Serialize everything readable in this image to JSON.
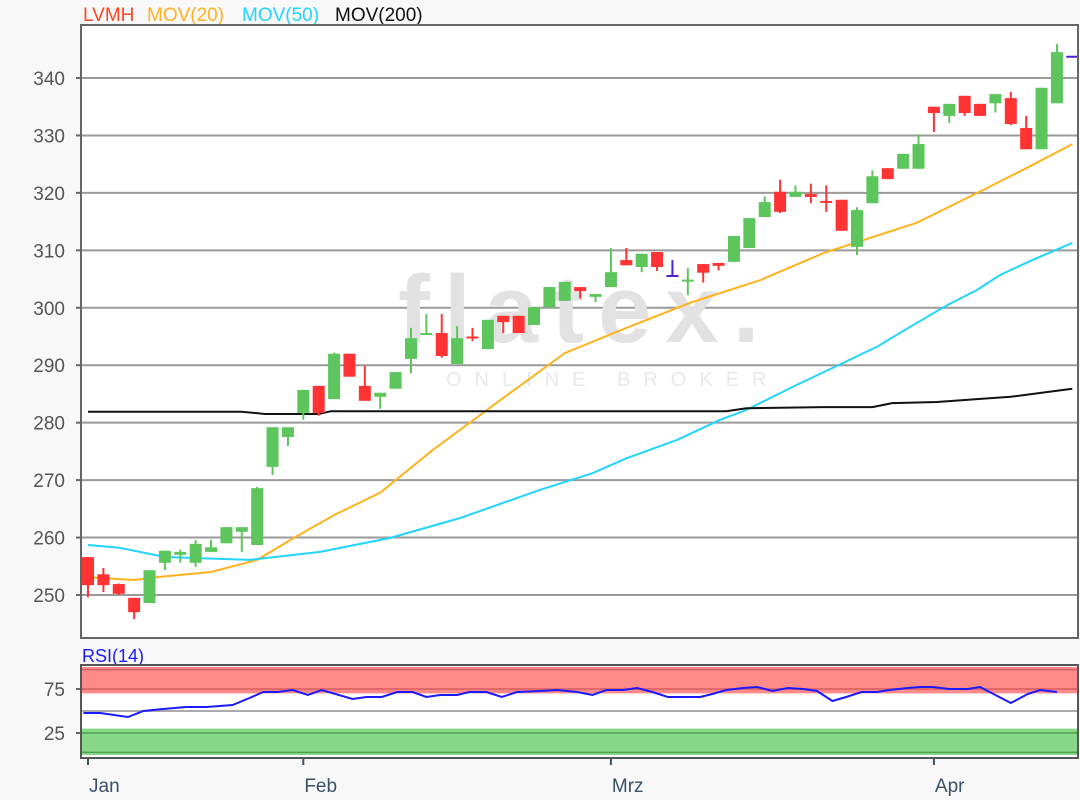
{
  "legend": [
    {
      "label": "LVMH",
      "color": "#ff4422"
    },
    {
      "label": "MOV(20)",
      "color": "#ffb21e"
    },
    {
      "label": "MOV(50)",
      "color": "#22d4ff"
    },
    {
      "label": "MOV(200)",
      "color": "#111111"
    }
  ],
  "watermark": {
    "brand": "flatex.",
    "tagline": "ONLINE BROKER"
  },
  "chart_data": [
    {
      "type": "candlestick",
      "title": "LVMH",
      "ylim": [
        242.5,
        349.2
      ],
      "yticks": [
        250,
        260,
        270,
        280,
        290,
        300,
        310,
        320,
        330,
        340
      ],
      "xticks": [
        {
          "index": 0,
          "label": "Jan"
        },
        {
          "index": 14,
          "label": "Feb"
        },
        {
          "index": 34,
          "label": "Mrz"
        },
        {
          "index": 55,
          "label": "Apr"
        }
      ],
      "grid": true,
      "colors": {
        "up": "#5cc65c",
        "down": "#ff3333",
        "unchanged": "#4a20d0"
      },
      "ohlc": [
        [
          256.6,
          256.6,
          249.6,
          251.7
        ],
        [
          253.6,
          254.7,
          250.5,
          251.7
        ],
        [
          251.9,
          252.0,
          250.0,
          250.2
        ],
        [
          249.5,
          249.5,
          245.8,
          247.0
        ],
        [
          248.6,
          254.3,
          248.6,
          254.3
        ],
        [
          255.6,
          257.7,
          254.3,
          257.7
        ],
        [
          257.0,
          257.9,
          255.6,
          257.5
        ],
        [
          255.6,
          259.6,
          254.9,
          258.9
        ],
        [
          257.5,
          259.6,
          257.5,
          258.3
        ],
        [
          259.0,
          261.8,
          259.0,
          261.8
        ],
        [
          261.0,
          261.8,
          257.5,
          261.8
        ],
        [
          258.7,
          268.8,
          258.7,
          268.6
        ],
        [
          272.3,
          279.2,
          270.9,
          279.2
        ],
        [
          277.5,
          279.2,
          275.9,
          279.2
        ],
        [
          281.7,
          285.7,
          280.5,
          285.7
        ],
        [
          286.4,
          286.4,
          281.2,
          281.7
        ],
        [
          284.1,
          292.2,
          284.1,
          292.0
        ],
        [
          292.0,
          292.0,
          288.0,
          288.0
        ],
        [
          286.4,
          289.9,
          283.8,
          283.8
        ],
        [
          284.5,
          285.2,
          282.4,
          285.2
        ],
        [
          285.9,
          288.8,
          285.9,
          288.8
        ],
        [
          291.1,
          296.5,
          288.6,
          294.7
        ],
        [
          295.3,
          298.9,
          295.3,
          295.6
        ],
        [
          295.6,
          298.9,
          291.3,
          291.6
        ],
        [
          290.2,
          296.8,
          290.2,
          294.7
        ],
        [
          295.0,
          296.5,
          294.2,
          294.8
        ],
        [
          292.8,
          297.9,
          292.8,
          297.9
        ],
        [
          298.6,
          298.6,
          295.6,
          297.5
        ],
        [
          298.6,
          298.6,
          295.6,
          295.6
        ],
        [
          297.0,
          300.1,
          297.0,
          300.1
        ],
        [
          300.1,
          303.6,
          300.1,
          303.6
        ],
        [
          301.2,
          304.5,
          301.2,
          304.5
        ],
        [
          303.6,
          303.6,
          301.6,
          302.9
        ],
        [
          301.9,
          302.4,
          301.0,
          302.4
        ],
        [
          303.6,
          310.4,
          303.6,
          306.2
        ],
        [
          308.3,
          310.4,
          307.4,
          307.4
        ],
        [
          307.1,
          309.4,
          306.2,
          309.4
        ],
        [
          309.7,
          309.7,
          306.4,
          307.1
        ],
        [
          305.7,
          308.3,
          305.7,
          305.7
        ],
        [
          304.6,
          306.9,
          302.2,
          304.9
        ],
        [
          307.6,
          307.6,
          304.4,
          306.1
        ],
        [
          307.8,
          307.8,
          306.5,
          307.3
        ],
        [
          308.0,
          312.5,
          308.0,
          312.5
        ],
        [
          310.4,
          315.6,
          310.4,
          315.6
        ],
        [
          315.8,
          319.4,
          315.8,
          318.4
        ],
        [
          320.2,
          322.3,
          316.5,
          316.7
        ],
        [
          319.3,
          321.3,
          319.3,
          320.2
        ],
        [
          319.8,
          321.6,
          318.2,
          319.3
        ],
        [
          318.6,
          321.3,
          316.7,
          318.4
        ],
        [
          318.8,
          318.8,
          313.4,
          313.4
        ],
        [
          310.6,
          317.5,
          309.2,
          317.0
        ],
        [
          318.2,
          323.9,
          318.2,
          322.9
        ],
        [
          324.3,
          324.3,
          322.4,
          322.4
        ],
        [
          324.2,
          326.8,
          324.2,
          326.8
        ],
        [
          324.2,
          330.2,
          324.2,
          328.5
        ],
        [
          335.0,
          335.0,
          330.6,
          333.9
        ],
        [
          333.4,
          335.5,
          332.2,
          335.5
        ],
        [
          336.9,
          336.9,
          333.4,
          333.9
        ],
        [
          335.5,
          335.5,
          333.4,
          333.4
        ],
        [
          335.6,
          337.2,
          334.0,
          337.2
        ],
        [
          336.5,
          337.6,
          331.8,
          332.0
        ],
        [
          331.3,
          333.4,
          327.6,
          327.6
        ],
        [
          327.6,
          338.3,
          327.6,
          338.3
        ],
        [
          335.6,
          345.9,
          335.6,
          344.5
        ]
      ],
      "last_price_marker": 343.7,
      "series": [
        {
          "name": "MOV(20)",
          "color": "#ffb21e",
          "points": [
            [
              0,
              253.1
            ],
            [
              3,
              252.6
            ],
            [
              4.4,
              253.1
            ],
            [
              8,
              254.0
            ],
            [
              11,
              256.1
            ],
            [
              13.5,
              260.1
            ],
            [
              16,
              263.9
            ],
            [
              19,
              267.8
            ],
            [
              22.4,
              275.2
            ],
            [
              26.8,
              283.9
            ],
            [
              31,
              292.1
            ],
            [
              35,
              296.5
            ],
            [
              39.3,
              301.0
            ],
            [
              43.7,
              304.8
            ],
            [
              47.8,
              309.5
            ],
            [
              53.9,
              314.8
            ],
            [
              58.2,
              320.5
            ],
            [
              61,
              324.3
            ],
            [
              64,
              328.5
            ]
          ]
        },
        {
          "name": "MOV(50)",
          "color": "#22d4ff",
          "points": [
            [
              0,
              258.7
            ],
            [
              2.1,
              258.2
            ],
            [
              5,
              256.6
            ],
            [
              10.5,
              256.1
            ],
            [
              15.1,
              257.5
            ],
            [
              19.6,
              259.9
            ],
            [
              24.2,
              263.4
            ],
            [
              29.4,
              268.3
            ],
            [
              32.8,
              271.2
            ],
            [
              35,
              273.8
            ],
            [
              38.3,
              277.0
            ],
            [
              41.1,
              280.5
            ],
            [
              42.8,
              282.2
            ],
            [
              45.8,
              286.2
            ],
            [
              49.1,
              290.4
            ],
            [
              51.3,
              293.2
            ],
            [
              53.4,
              296.6
            ],
            [
              55.9,
              300.5
            ],
            [
              57.8,
              303.1
            ],
            [
              59.3,
              305.7
            ],
            [
              61.4,
              308.3
            ],
            [
              64,
              311.3
            ]
          ]
        },
        {
          "name": "MOV(200)",
          "color": "#111111",
          "points": [
            [
              0,
              281.9
            ],
            [
              10,
              281.9
            ],
            [
              11.5,
              281.5
            ],
            [
              15,
              281.5
            ],
            [
              15.8,
              282.0
            ],
            [
              41.5,
              282.0
            ],
            [
              42.8,
              282.5
            ],
            [
              47.8,
              282.7
            ],
            [
              51,
              282.7
            ],
            [
              52.3,
              283.4
            ],
            [
              55.2,
              283.6
            ],
            [
              57.8,
              284.1
            ],
            [
              60,
              284.5
            ],
            [
              64,
              285.9
            ]
          ]
        }
      ]
    },
    {
      "type": "line",
      "title": "RSI(14)",
      "ylim": [
        0,
        100
      ],
      "yticks": [
        75,
        25
      ],
      "overbought_zone": [
        70,
        100
      ],
      "oversold_zone": [
        0,
        30
      ],
      "color": "#1a1aff",
      "points": [
        [
          -0.3,
          47.7
        ],
        [
          0.8,
          47.7
        ],
        [
          2.6,
          43.2
        ],
        [
          3.6,
          50
        ],
        [
          4.7,
          52
        ],
        [
          6.4,
          54.5
        ],
        [
          7.7,
          54.5
        ],
        [
          9.4,
          56.8
        ],
        [
          10.5,
          64.8
        ],
        [
          11.4,
          71.6
        ],
        [
          12.3,
          71.6
        ],
        [
          13.3,
          73.9
        ],
        [
          14.3,
          68.2
        ],
        [
          15.2,
          73.9
        ],
        [
          17.2,
          63.6
        ],
        [
          18.1,
          65.9
        ],
        [
          19.1,
          65.9
        ],
        [
          20.1,
          71.6
        ],
        [
          21.1,
          71.6
        ],
        [
          22,
          65.9
        ],
        [
          22.9,
          68.2
        ],
        [
          24,
          68.2
        ],
        [
          24.8,
          71.6
        ],
        [
          25.9,
          71.6
        ],
        [
          26.9,
          65.9
        ],
        [
          27.9,
          71.6
        ],
        [
          29.4,
          72.7
        ],
        [
          30.5,
          73.9
        ],
        [
          31.8,
          71.6
        ],
        [
          32.8,
          68.2
        ],
        [
          33.7,
          73.9
        ],
        [
          34.8,
          73.9
        ],
        [
          35.7,
          76.1
        ],
        [
          36.7,
          71.6
        ],
        [
          37.7,
          65.9
        ],
        [
          39.8,
          65.9
        ],
        [
          40.6,
          69.3
        ],
        [
          41.5,
          73.9
        ],
        [
          42.6,
          76.1
        ],
        [
          43.5,
          77.3
        ],
        [
          44.5,
          72.7
        ],
        [
          45.5,
          76.1
        ],
        [
          46.5,
          75
        ],
        [
          47.4,
          72.7
        ],
        [
          48.4,
          61.4
        ],
        [
          49.3,
          65.9
        ],
        [
          50.3,
          71.6
        ],
        [
          51.3,
          71.6
        ],
        [
          52.1,
          73.9
        ],
        [
          53.3,
          76.1
        ],
        [
          54.1,
          77.3
        ],
        [
          54.9,
          77.3
        ],
        [
          56,
          75
        ],
        [
          57.2,
          75
        ],
        [
          58,
          77.3
        ],
        [
          59,
          68.2
        ],
        [
          60,
          59.1
        ],
        [
          61.1,
          69.3
        ],
        [
          61.9,
          73.9
        ],
        [
          63,
          71.6
        ]
      ]
    }
  ]
}
